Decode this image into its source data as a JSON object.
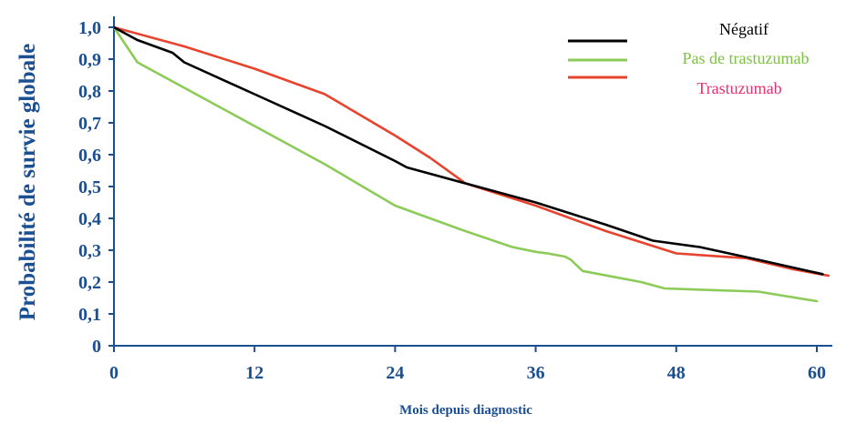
{
  "chart_data": {
    "type": "line",
    "title": "",
    "xlabel": "Mois depuis diagnostic",
    "ylabel": "Probabilité de survie globale",
    "xlim": [
      0,
      60
    ],
    "ylim": [
      0,
      1.0
    ],
    "x_ticks": [
      0,
      12,
      24,
      36,
      48,
      60
    ],
    "y_ticks": [
      0,
      0.1,
      0.2,
      0.3,
      0.4,
      0.5,
      0.6,
      0.7,
      0.8,
      0.9,
      1.0
    ],
    "x_tick_labels": [
      "0",
      "12",
      "24",
      "36",
      "48",
      "60"
    ],
    "y_tick_labels": [
      "0",
      "0,1",
      "0,2",
      "0,3",
      "0,4",
      "0,5",
      "0,6",
      "0,7",
      "0,8",
      "0,9",
      "1,0"
    ],
    "grid": false,
    "legend_position": "top-right",
    "colors": {
      "axis": "#1b4f93",
      "tick_labels": "#1b4f93"
    },
    "series": [
      {
        "name": "Négatif",
        "color": "#000000",
        "label_color": "#000000",
        "x": [
          0,
          2,
          5,
          6,
          12,
          18,
          24,
          25,
          30,
          36,
          42,
          46,
          50,
          55,
          60.5
        ],
        "y": [
          1.0,
          0.96,
          0.92,
          0.89,
          0.79,
          0.69,
          0.58,
          0.56,
          0.51,
          0.45,
          0.38,
          0.33,
          0.31,
          0.27,
          0.225
        ]
      },
      {
        "name": "Pas de trastuzumab",
        "color": "#8ccb58",
        "label_color": "#7cc142",
        "x": [
          0,
          2,
          5,
          8,
          12,
          18,
          24,
          30,
          34,
          36,
          37,
          38.5,
          39,
          40,
          45,
          47,
          51,
          55,
          60
        ],
        "y": [
          1.0,
          0.89,
          0.83,
          0.77,
          0.69,
          0.57,
          0.44,
          0.36,
          0.31,
          0.295,
          0.29,
          0.28,
          0.27,
          0.235,
          0.2,
          0.18,
          0.175,
          0.17,
          0.14
        ]
      },
      {
        "name": "Trastuzumab",
        "color": "#e8432c",
        "label_color": "#e8306e",
        "x": [
          0,
          6,
          12,
          18,
          24,
          27,
          30,
          36,
          42,
          48,
          54,
          58,
          61
        ],
        "y": [
          1.0,
          0.94,
          0.87,
          0.79,
          0.66,
          0.59,
          0.51,
          0.44,
          0.36,
          0.29,
          0.275,
          0.24,
          0.22
        ]
      }
    ]
  }
}
